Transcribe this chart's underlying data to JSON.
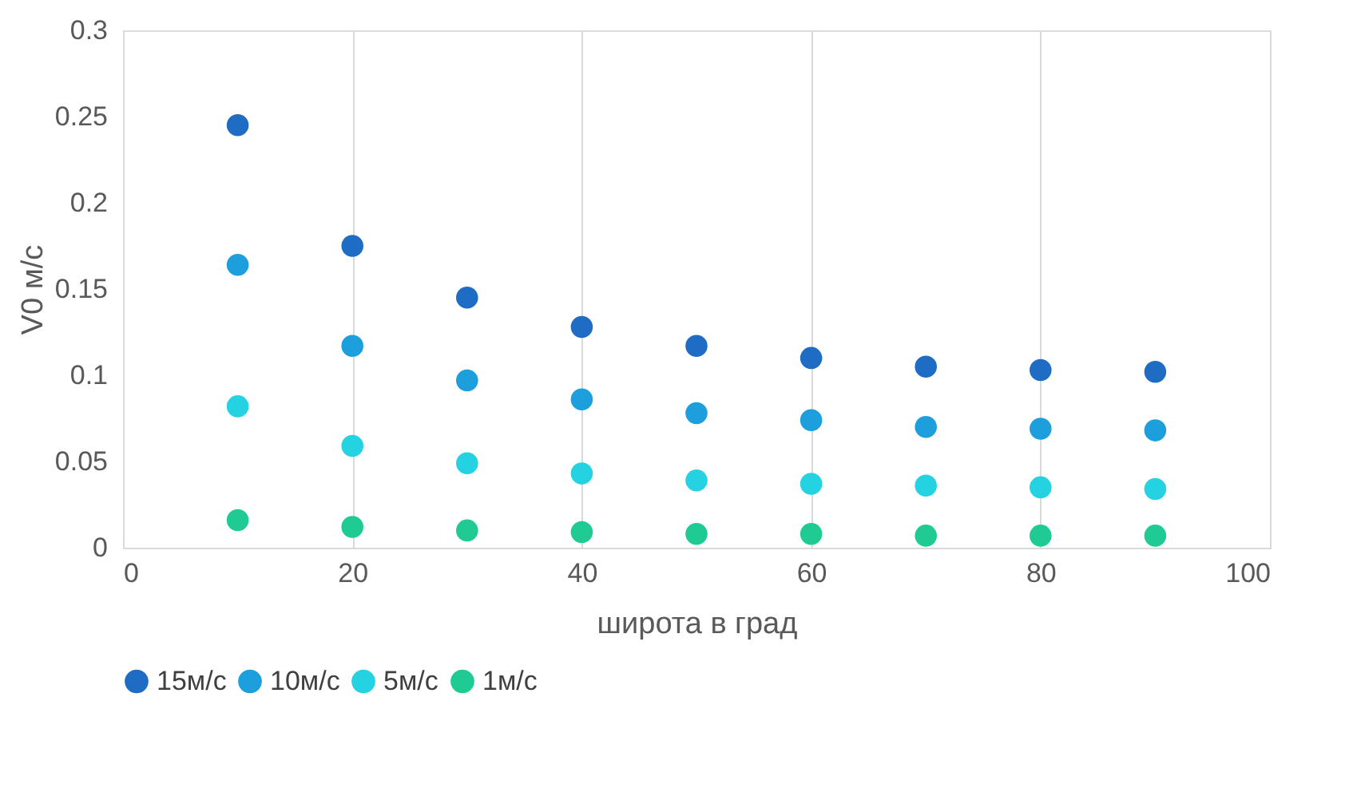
{
  "chart_data": {
    "type": "scatter",
    "xlabel": "широта в град",
    "ylabel": "V0 м/с",
    "x": [
      10,
      20,
      30,
      40,
      50,
      60,
      70,
      80,
      90
    ],
    "series": [
      {
        "name": "15м/с",
        "color": "#1f6cc4",
        "values": [
          0.245,
          0.175,
          0.145,
          0.128,
          0.117,
          0.11,
          0.105,
          0.103,
          0.102
        ]
      },
      {
        "name": "10м/с",
        "color": "#1c9fdc",
        "values": [
          0.164,
          0.117,
          0.097,
          0.086,
          0.078,
          0.074,
          0.07,
          0.069,
          0.068
        ]
      },
      {
        "name": "5м/с",
        "color": "#24d2e2",
        "values": [
          0.082,
          0.059,
          0.049,
          0.043,
          0.039,
          0.037,
          0.036,
          0.035,
          0.034
        ]
      },
      {
        "name": "1м/с",
        "color": "#1fcb93",
        "values": [
          0.016,
          0.012,
          0.01,
          0.009,
          0.008,
          0.008,
          0.007,
          0.007,
          0.007
        ]
      }
    ],
    "xlim": [
      0,
      100
    ],
    "xticks": [
      0,
      20,
      40,
      60,
      80,
      100
    ],
    "ylim": [
      0,
      0.3
    ],
    "yticks": [
      0,
      0.05,
      0.1,
      0.15,
      0.2,
      0.25,
      0.3
    ],
    "grid": "x",
    "legend": "bottom",
    "marker": "circle"
  }
}
